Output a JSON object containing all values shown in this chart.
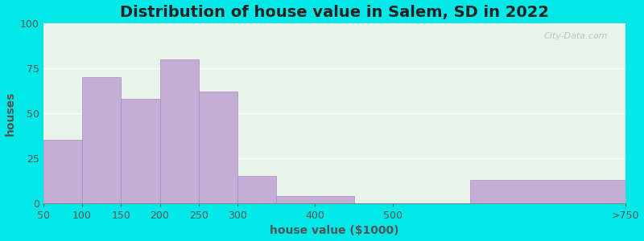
{
  "title": "Distribution of house value in Salem, SD in 2022",
  "xlabel": "house value ($1000)",
  "ylabel": "houses",
  "bar_lefts": [
    50,
    100,
    150,
    200,
    250,
    300,
    350,
    450,
    600
  ],
  "bar_widths": [
    50,
    50,
    50,
    50,
    50,
    50,
    100,
    100,
    200
  ],
  "bar_values": [
    35,
    70,
    58,
    80,
    62,
    15,
    4,
    0,
    13
  ],
  "xtick_positions": [
    50,
    100,
    150,
    200,
    250,
    300,
    400,
    500,
    800
  ],
  "xtick_labels": [
    "50",
    "100",
    "150",
    "200",
    "250",
    "300",
    "400",
    "500",
    ">750"
  ],
  "bar_color": "#c4aed8",
  "bar_edge_color": "#a88cc0",
  "yticks": [
    0,
    25,
    50,
    75,
    100
  ],
  "ylim": [
    0,
    100
  ],
  "xlim": [
    50,
    800
  ],
  "background_outer": "#00e8e8",
  "background_plot": "#e8f4e8",
  "grid_color": "#ffffff",
  "title_fontsize": 14,
  "label_fontsize": 10,
  "tick_fontsize": 9,
  "watermark": "City-Data.com"
}
